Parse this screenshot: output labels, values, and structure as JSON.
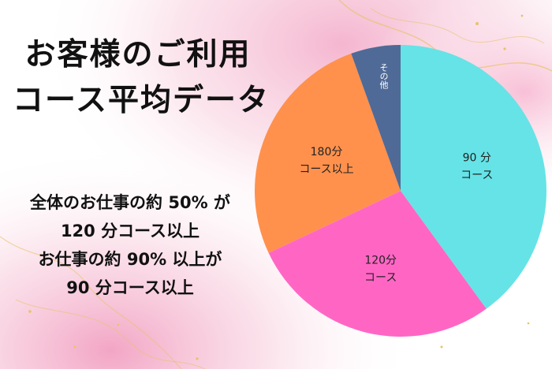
{
  "title": {
    "line1": "お客様のご利用",
    "line2": "コース平均データ"
  },
  "notes": [
    "全体のお仕事の約 50% が",
    "120 分コース以上",
    "お仕事の約 90% 以上が",
    "90 分コース以上"
  ],
  "chart_data": {
    "type": "pie",
    "title": "お客様のご利用コース平均データ",
    "slices": [
      {
        "label_line1": "90 分",
        "label_line2": "コース",
        "value": 40,
        "color": "#66E3E6"
      },
      {
        "label_line1": "120分",
        "label_line2": "コース",
        "value": 28,
        "color": "#FF66C4"
      },
      {
        "label_line1": "180分",
        "label_line2": "コース以上",
        "value": 26.5,
        "color": "#FF914D"
      },
      {
        "label_line1": "その他",
        "label_line2": "",
        "value": 5.5,
        "color": "#4F6A96"
      }
    ]
  },
  "colors": {
    "text": "#111111",
    "background_accent": "#F6C3D6"
  }
}
